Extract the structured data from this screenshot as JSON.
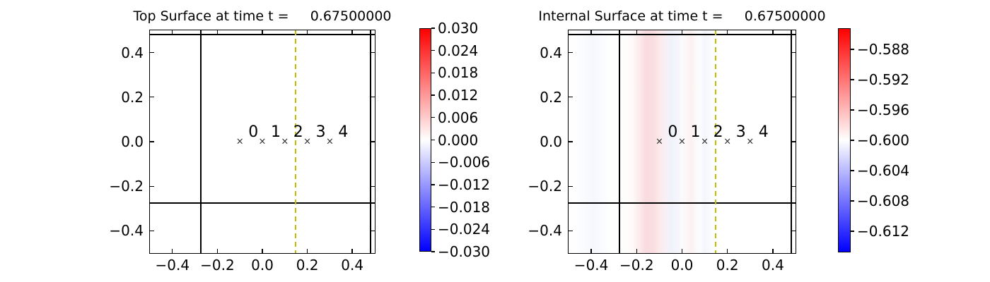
{
  "figure": {
    "background": "#ffffff",
    "line_color": "#000000",
    "dashed_line_color": "#bfbf00",
    "colormap": "blue-white-red"
  },
  "chart_data": [
    {
      "type": "heatmap",
      "title": "Top Surface at time t =     0.67500000",
      "xlim": [
        -0.5,
        0.5
      ],
      "ylim": [
        -0.5,
        0.5
      ],
      "xticks": [
        {
          "value": -0.4,
          "label": "−0.4"
        },
        {
          "value": -0.2,
          "label": "−0.2"
        },
        {
          "value": 0.0,
          "label": "0.0"
        },
        {
          "value": 0.2,
          "label": "0.2"
        },
        {
          "value": 0.4,
          "label": "0.4"
        }
      ],
      "yticks": [
        {
          "value": 0.4,
          "label": "0.4"
        },
        {
          "value": 0.2,
          "label": "0.2"
        },
        {
          "value": 0.0,
          "label": "0.0"
        },
        {
          "value": -0.2,
          "label": "−0.2"
        },
        {
          "value": -0.4,
          "label": "−0.4"
        }
      ],
      "field_description": "uniform value 0.000 rendered as white over entire domain",
      "boundary_lines": {
        "vertical_x": [
          -0.275,
          0.48
        ],
        "horizontal_y": [
          -0.275,
          0.48
        ]
      },
      "dashed_vline_x": 0.148,
      "markers": {
        "symbol": "x",
        "symbol_glyph": "×",
        "points": [
          {
            "x": -0.1,
            "y": 0.0,
            "label": "0"
          },
          {
            "x": 0.0,
            "y": 0.0,
            "label": "1"
          },
          {
            "x": 0.1,
            "y": 0.0,
            "label": "2"
          },
          {
            "x": 0.2,
            "y": 0.0,
            "label": "3"
          },
          {
            "x": 0.3,
            "y": 0.0,
            "label": "4"
          }
        ]
      },
      "colorbar": {
        "cmap": "bwr",
        "vmax": 0.03,
        "vmin": -0.03,
        "ticks": [
          {
            "value": 0.03,
            "label": "0.030"
          },
          {
            "value": 0.024,
            "label": "0.024"
          },
          {
            "value": 0.018,
            "label": "0.018"
          },
          {
            "value": 0.012,
            "label": "0.012"
          },
          {
            "value": 0.006,
            "label": "0.006"
          },
          {
            "value": 0.0,
            "label": "0.000"
          },
          {
            "value": -0.006,
            "label": "−0.006"
          },
          {
            "value": -0.012,
            "label": "−0.012"
          },
          {
            "value": -0.018,
            "label": "−0.018"
          },
          {
            "value": -0.024,
            "label": "−0.024"
          },
          {
            "value": -0.03,
            "label": "−0.030"
          }
        ]
      },
      "stripes": null
    },
    {
      "type": "heatmap",
      "title": "Internal Surface at time t =     0.67500000",
      "xlim": [
        -0.5,
        0.5
      ],
      "ylim": [
        -0.5,
        0.5
      ],
      "xticks": [
        {
          "value": -0.4,
          "label": "−0.4"
        },
        {
          "value": -0.2,
          "label": "−0.2"
        },
        {
          "value": 0.0,
          "label": "0.0"
        },
        {
          "value": 0.2,
          "label": "0.2"
        },
        {
          "value": 0.4,
          "label": "0.4"
        }
      ],
      "yticks": [
        {
          "value": 0.4,
          "label": "0.4"
        },
        {
          "value": 0.2,
          "label": "0.2"
        },
        {
          "value": 0.0,
          "label": "0.0"
        },
        {
          "value": -0.2,
          "label": "−0.2"
        },
        {
          "value": -0.4,
          "label": "−0.4"
        }
      ],
      "field_description": "vertical stripe field around mean -0.600: faint blue near x=-0.39, pink band peaking near x=-0.14, lavender-blue near x=-0.05, faint pink near x=0.04, faint blue near x=0.10, white elsewhere",
      "boundary_lines": {
        "vertical_x": [
          -0.275,
          0.48
        ],
        "horizontal_y": [
          -0.275,
          0.48
        ]
      },
      "dashed_vline_x": 0.148,
      "markers": {
        "symbol": "x",
        "symbol_glyph": "×",
        "points": [
          {
            "x": -0.1,
            "y": 0.0,
            "label": "0"
          },
          {
            "x": 0.0,
            "y": 0.0,
            "label": "1"
          },
          {
            "x": 0.1,
            "y": 0.0,
            "label": "2"
          },
          {
            "x": 0.2,
            "y": 0.0,
            "label": "3"
          },
          {
            "x": 0.3,
            "y": 0.0,
            "label": "4"
          }
        ]
      },
      "colorbar": {
        "cmap": "bwr",
        "vmax": -0.5852,
        "vmin": -0.6148,
        "ticks": [
          {
            "value": -0.588,
            "label": "−0.588"
          },
          {
            "value": -0.592,
            "label": "−0.592"
          },
          {
            "value": -0.596,
            "label": "−0.596"
          },
          {
            "value": -0.6,
            "label": "−0.600"
          },
          {
            "value": -0.604,
            "label": "−0.604"
          },
          {
            "value": -0.608,
            "label": "−0.608"
          },
          {
            "value": -0.612,
            "label": "−0.612"
          }
        ]
      },
      "stripes": [
        {
          "x": -0.5,
          "color": "#ffffff"
        },
        {
          "x": -0.44,
          "color": "#fbfcfe"
        },
        {
          "x": -0.39,
          "color": "#f5f7fd"
        },
        {
          "x": -0.34,
          "color": "#fcfdfe"
        },
        {
          "x": -0.28,
          "color": "#ffffff"
        },
        {
          "x": -0.22,
          "color": "#fefafa"
        },
        {
          "x": -0.19,
          "color": "#fcecee"
        },
        {
          "x": -0.16,
          "color": "#f9dce0"
        },
        {
          "x": -0.13,
          "color": "#fadde0"
        },
        {
          "x": -0.1,
          "color": "#fce9ea"
        },
        {
          "x": -0.07,
          "color": "#f7f0f6"
        },
        {
          "x": -0.05,
          "color": "#f0f2fb"
        },
        {
          "x": -0.02,
          "color": "#f4f5fc"
        },
        {
          "x": 0.0,
          "color": "#fbfafd"
        },
        {
          "x": 0.02,
          "color": "#fdf7f7"
        },
        {
          "x": 0.04,
          "color": "#fcf1f1"
        },
        {
          "x": 0.06,
          "color": "#fdf8f8"
        },
        {
          "x": 0.08,
          "color": "#fbfcfe"
        },
        {
          "x": 0.1,
          "color": "#f4f6fd"
        },
        {
          "x": 0.13,
          "color": "#fbfcfe"
        },
        {
          "x": 0.16,
          "color": "#ffffff"
        },
        {
          "x": 0.5,
          "color": "#ffffff"
        }
      ]
    }
  ]
}
